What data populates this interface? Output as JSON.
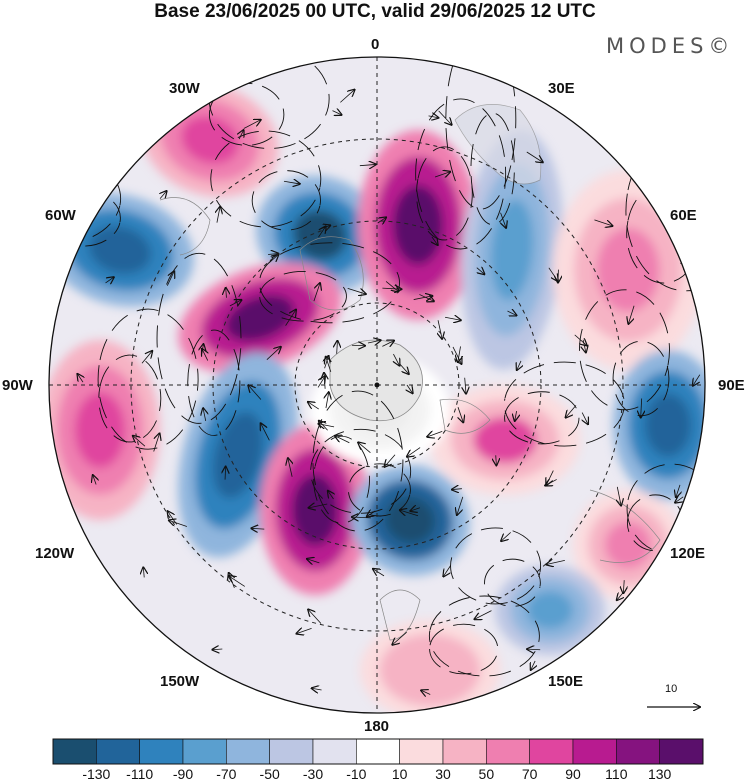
{
  "title": "Base 23/06/2025 00 UTC, valid 29/06/2025 12 UTC",
  "brand": "MODES©",
  "longitude_labels": {
    "lon_0": "0",
    "lon_30e": "30E",
    "lon_60e": "60E",
    "lon_90e": "90E",
    "lon_120e": "120E",
    "lon_150e": "150E",
    "lon_180": "180",
    "lon_150w": "150W",
    "lon_120w": "120W",
    "lon_90w": "90W",
    "lon_60w": "60W",
    "lon_30w": "30W"
  },
  "reference_vector_label": "10",
  "colorbar": {
    "tick_labels": [
      "-130",
      "-110",
      "-90",
      "-70",
      "-50",
      "-30",
      "-10",
      "10",
      "30",
      "50",
      "70",
      "90",
      "110",
      "130"
    ],
    "colors": [
      "#1a4e6f",
      "#21649a",
      "#2f82bd",
      "#5a9fcf",
      "#8fb5dd",
      "#bcc6e3",
      "#e2e2ef",
      "#ffffff",
      "#fbdcde",
      "#f6b3c4",
      "#ef7fb0",
      "#e0459f",
      "#b81b90",
      "#85137f",
      "#5a0f6b"
    ]
  }
}
